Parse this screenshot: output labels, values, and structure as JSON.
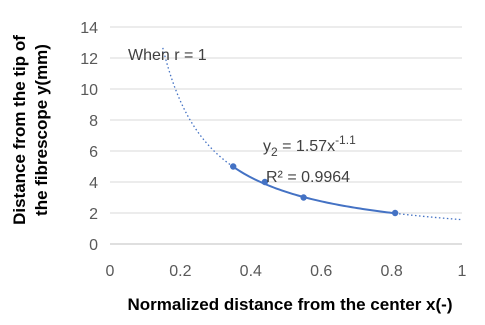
{
  "chart_data": {
    "type": "scatter",
    "title": "",
    "xlabel": "Normalized distance from the center x(-)",
    "ylabel_lines": [
      "Distance from the tip of",
      "the fibrescope y(mm)"
    ],
    "xlim": [
      0,
      1
    ],
    "ylim": [
      0,
      14
    ],
    "x_ticks": [
      "0",
      "0.2",
      "0.4",
      "0.6",
      "0.8",
      "1"
    ],
    "y_ticks": [
      "0",
      "2",
      "4",
      "6",
      "8",
      "10",
      "12",
      "14"
    ],
    "grid": "horizontal",
    "series": [
      {
        "points": [
          {
            "x": 0.35,
            "y": 5.0
          },
          {
            "x": 0.44,
            "y": 4.0
          },
          {
            "x": 0.55,
            "y": 3.0
          },
          {
            "x": 0.81,
            "y": 2.0
          }
        ],
        "color": "#4472C4"
      }
    ],
    "trendline": {
      "form": "power",
      "coefficient": 1.57,
      "exponent": -1.1,
      "x_range": [
        0.15,
        1.0
      ],
      "solid_range": [
        0.35,
        0.81
      ],
      "color": "#4472C4",
      "style_outside_data": "dotted"
    },
    "annotations": {
      "condition": "When r = 1",
      "equation_lhs": "y",
      "equation_sub": "2",
      "equation_mid": " = 1.57x",
      "equation_sup": "-1.1",
      "r_squared": "R² = 0.9964"
    }
  }
}
